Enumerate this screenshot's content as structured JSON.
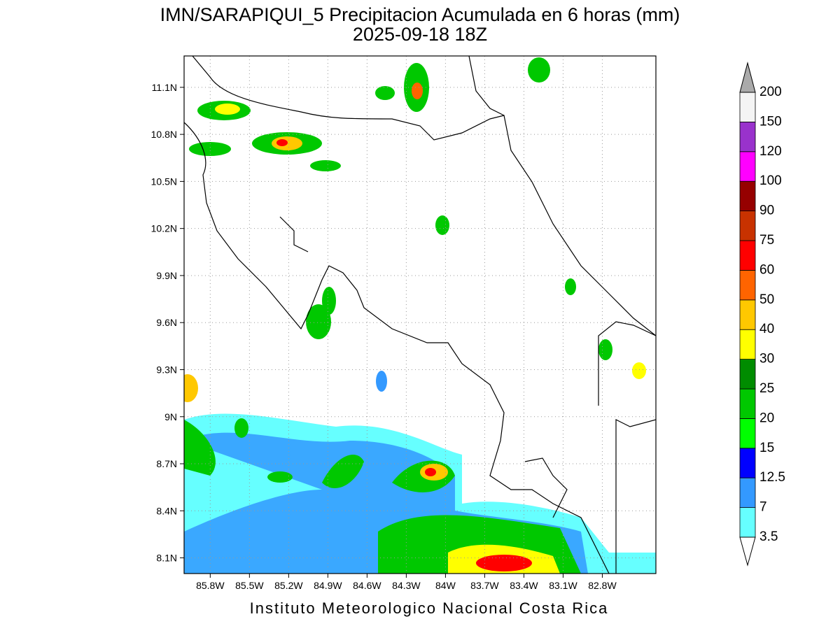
{
  "map": {
    "title": "IMN/SARAPIQUI_5 Precipitacion Acumulada en 6 horas (mm)",
    "subtitle": "2025-09-18 18Z",
    "footer": "Instituto Meteorologico Nacional Costa Rica",
    "xlim": [
      -86.0,
      -82.39
    ],
    "ylim": [
      8.0,
      11.3
    ],
    "grid": true,
    "xticks": [
      {
        "value": -85.8,
        "label": "85.8W"
      },
      {
        "value": -85.5,
        "label": "85.5W"
      },
      {
        "value": -85.2,
        "label": "85.2W"
      },
      {
        "value": -84.9,
        "label": "84.9W"
      },
      {
        "value": -84.6,
        "label": "84.6W"
      },
      {
        "value": -84.3,
        "label": "84.3W"
      },
      {
        "value": -84.0,
        "label": "84W"
      },
      {
        "value": -83.7,
        "label": "83.7W"
      },
      {
        "value": -83.4,
        "label": "83.4W"
      },
      {
        "value": -83.1,
        "label": "83.1W"
      },
      {
        "value": -82.8,
        "label": "82.8W"
      }
    ],
    "yticks": [
      {
        "value": 8.1,
        "label": "8.1N"
      },
      {
        "value": 8.4,
        "label": "8.4N"
      },
      {
        "value": 8.7,
        "label": "8.7N"
      },
      {
        "value": 9.0,
        "label": "9N"
      },
      {
        "value": 9.3,
        "label": "9.3N"
      },
      {
        "value": 9.6,
        "label": "9.6N"
      },
      {
        "value": 9.9,
        "label": "9.9N"
      },
      {
        "value": 10.2,
        "label": "10.2N"
      },
      {
        "value": 10.5,
        "label": "10.5N"
      },
      {
        "value": 10.8,
        "label": "10.8N"
      },
      {
        "value": 11.1,
        "label": "11.1N"
      }
    ]
  },
  "legend": {
    "levels": [
      3.5,
      7,
      12.5,
      15,
      20,
      25,
      30,
      40,
      50,
      60,
      75,
      90,
      100,
      120,
      150,
      200
    ],
    "colors": [
      "#66ffff",
      "#3399ff",
      "#0000ff",
      "#00ff00",
      "#00c800",
      "#008c00",
      "#ffff00",
      "#ffc800",
      "#ff6400",
      "#ff0000",
      "#c83200",
      "#960000",
      "#ff00ff",
      "#9932cc",
      "#f4f4f4"
    ],
    "below_color": "#ffffff",
    "above_color": "#aaaaaa"
  }
}
